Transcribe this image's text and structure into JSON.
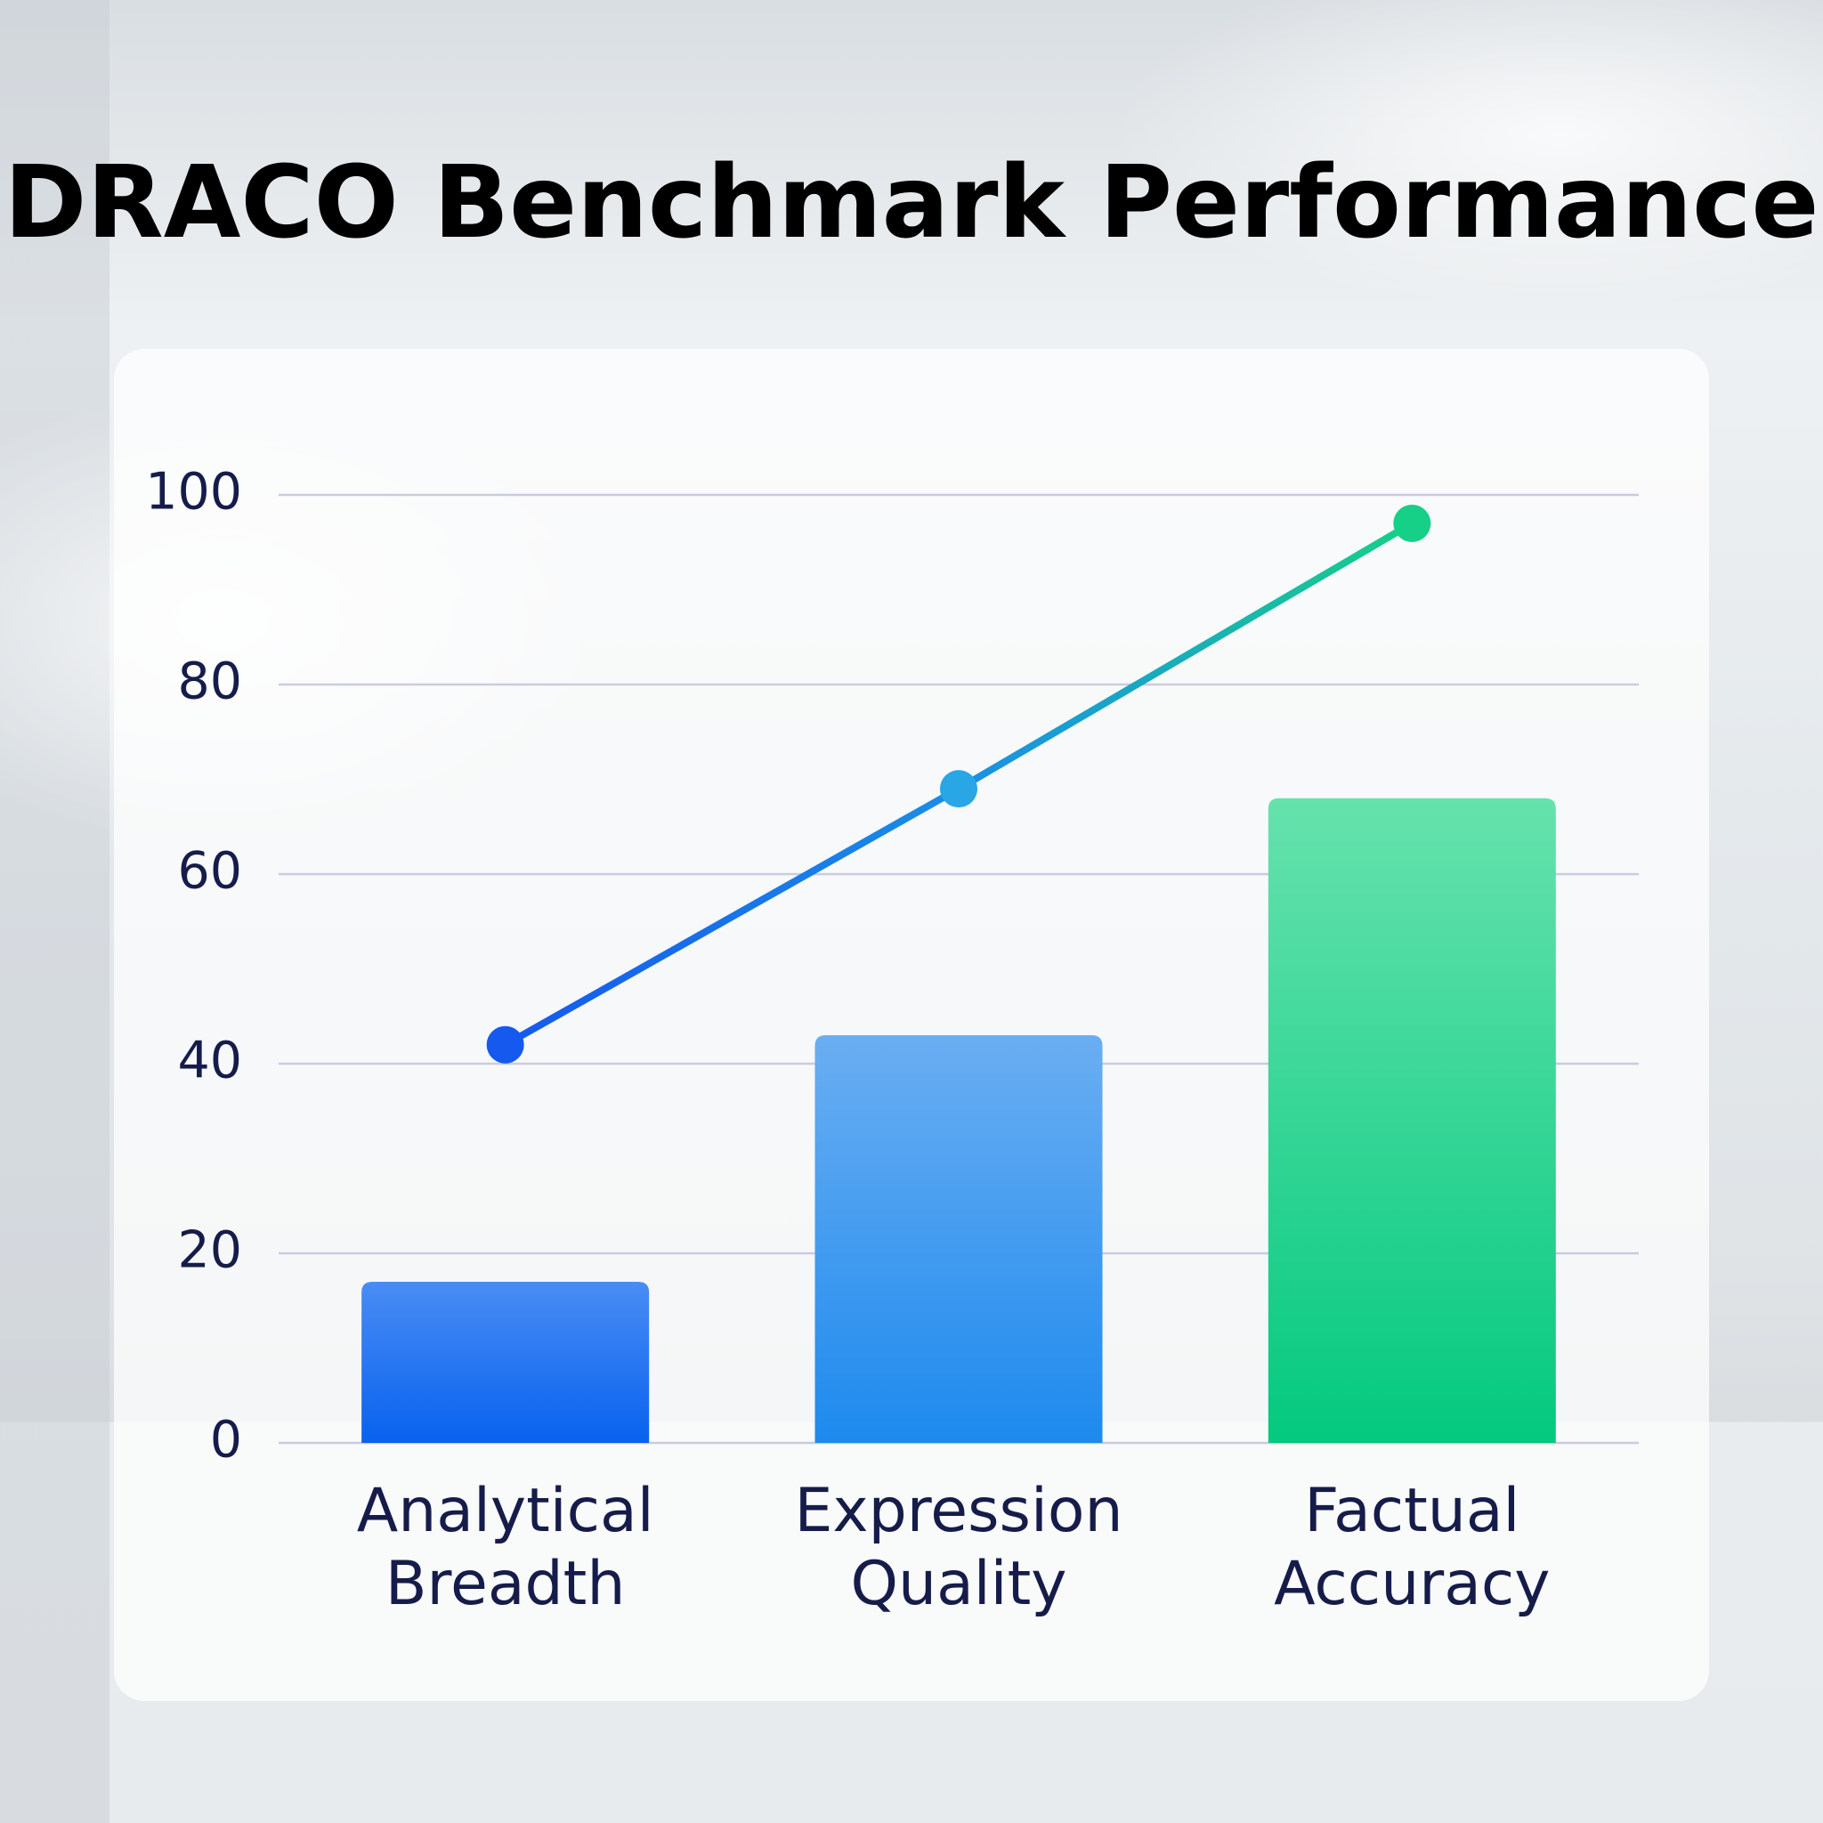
{
  "chart_data": {
    "type": "bar",
    "title": "DRACO Benchmark Performance",
    "categories": [
      "Analytical Breadth",
      "Expression Quality",
      "Factual Accuracy"
    ],
    "series": [
      {
        "type": "bar",
        "values": [
          17,
          43,
          68
        ],
        "colors": [
          [
            "#4a8cf4",
            "#0862ee"
          ],
          [
            "#6aaef2",
            "#1e8aee"
          ],
          [
            "#66e2ad",
            "#04c97f"
          ]
        ]
      },
      {
        "type": "line",
        "values": [
          42,
          69,
          97
        ],
        "colors": [
          "#1559ee",
          "#28a6e6",
          "#16d088"
        ]
      }
    ],
    "ylim": [
      0,
      100
    ],
    "yticks": [
      0,
      20,
      40,
      60,
      80,
      100
    ],
    "grid": true
  }
}
